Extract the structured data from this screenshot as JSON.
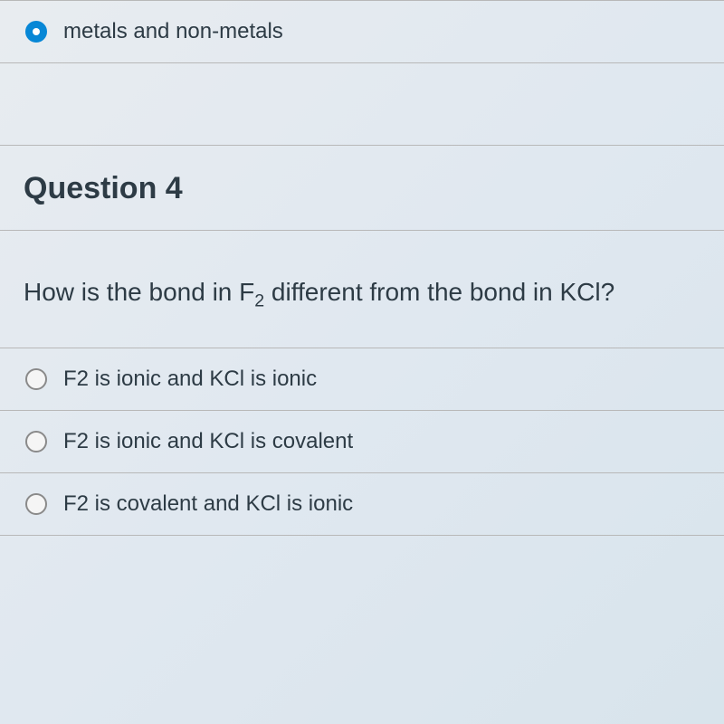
{
  "colors": {
    "selected_radio": "#0787d6",
    "unselected_border": "#8a8a8a",
    "text": "#2d3b45",
    "divider": "#b8b8b8",
    "bg_gradient_start": "#e8ecf0",
    "bg_gradient_end": "#d8e4ec"
  },
  "prev_question": {
    "selected_option": {
      "label": "metals and non-metals",
      "selected": true
    }
  },
  "question": {
    "title": "Question 4",
    "text_prefix": "How is the bond in F",
    "text_sub1": "2",
    "text_middle": " different from the bond in KCl?",
    "options": [
      {
        "label": "F2 is ionic and KCl is ionic",
        "selected": false
      },
      {
        "label": "F2 is ionic and KCl is covalent",
        "selected": false
      },
      {
        "label": "F2 is covalent and KCl is ionic",
        "selected": false
      }
    ]
  }
}
